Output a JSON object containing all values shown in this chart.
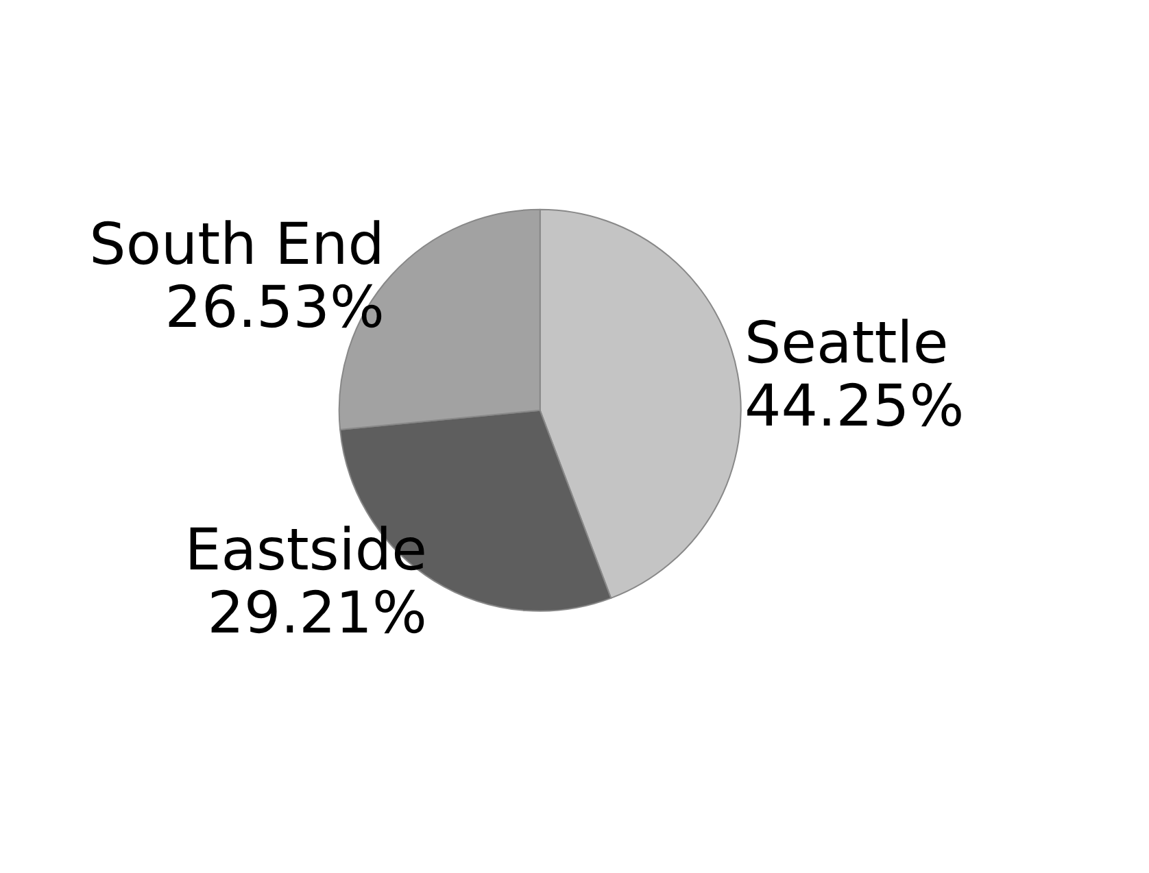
{
  "chart_data": {
    "type": "pie",
    "categories": [
      "Seattle",
      "Eastside",
      "South End"
    ],
    "values": [
      44.25,
      29.21,
      26.53
    ],
    "value_labels": [
      "44.25%",
      "29.21%",
      "26.53%"
    ],
    "colors": [
      "#c4c4c4",
      "#5e5e5e",
      "#a2a2a2"
    ]
  }
}
